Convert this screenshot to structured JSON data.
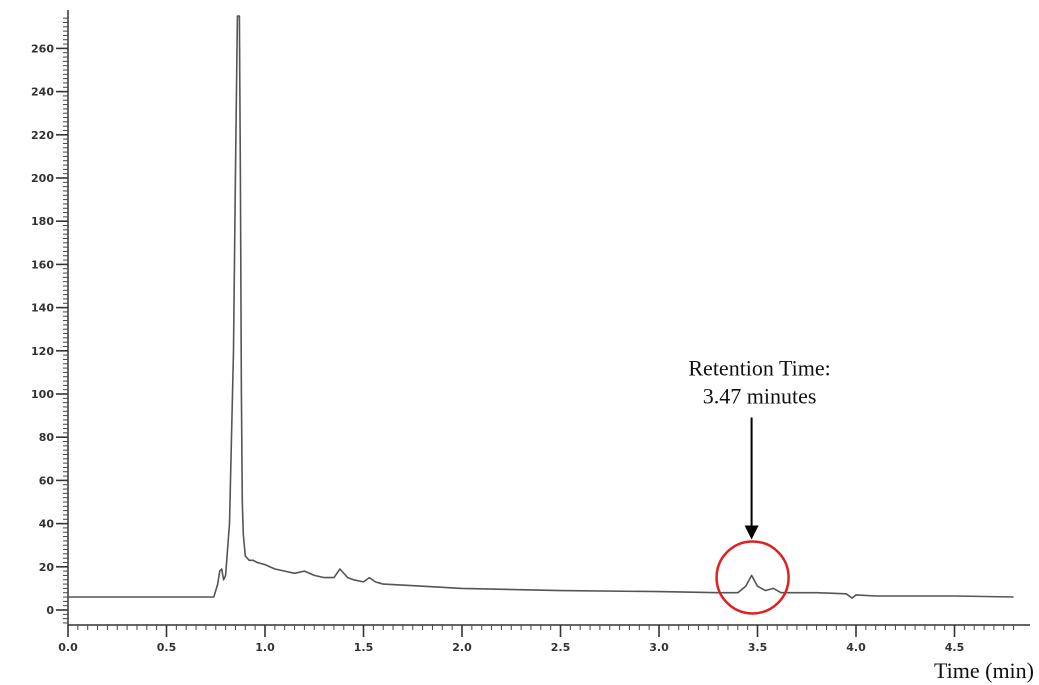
{
  "chart_data": {
    "type": "line",
    "title": "",
    "xlabel": "Time (min)",
    "ylabel": "",
    "xlim": [
      0.0,
      4.8
    ],
    "ylim": [
      -10,
      275
    ],
    "x_ticks": [
      0.0,
      0.5,
      1.0,
      1.5,
      2.0,
      2.5,
      3.0,
      3.5,
      4.0,
      4.5
    ],
    "x_tick_labels": [
      "0.0",
      "0.5",
      "1.0",
      "1.5",
      "2.0",
      "2.5",
      "3.0",
      "3.5",
      "4.0",
      "4.5"
    ],
    "y_ticks": [
      0,
      20,
      40,
      60,
      80,
      100,
      120,
      140,
      160,
      180,
      200,
      220,
      240,
      260
    ],
    "y_tick_labels": [
      "0",
      "20",
      "40",
      "60",
      "80",
      "100",
      "120",
      "140",
      "160",
      "180",
      "200",
      "220",
      "240",
      "260"
    ],
    "grid": false,
    "series": [
      {
        "color": "#555555",
        "x": [
          0.0,
          0.74,
          0.76,
          0.77,
          0.78,
          0.79,
          0.8,
          0.82,
          0.84,
          0.85,
          0.86,
          0.865,
          0.87,
          0.875,
          0.88,
          0.885,
          0.89,
          0.9,
          0.92,
          0.94,
          0.96,
          1.0,
          1.05,
          1.1,
          1.15,
          1.2,
          1.25,
          1.3,
          1.35,
          1.38,
          1.42,
          1.45,
          1.5,
          1.53,
          1.56,
          1.6,
          1.8,
          2.0,
          2.5,
          3.0,
          3.3,
          3.4,
          3.44,
          3.47,
          3.5,
          3.54,
          3.58,
          3.62,
          3.8,
          3.95,
          3.98,
          4.0,
          4.1,
          4.5,
          4.8
        ],
        "y": [
          6,
          6,
          12,
          18,
          19,
          14,
          16,
          40,
          120,
          200,
          275,
          275,
          275,
          200,
          100,
          50,
          35,
          25,
          23,
          23,
          22,
          21,
          19,
          18,
          17,
          18,
          16,
          15,
          15,
          19,
          15,
          14,
          13,
          15,
          13,
          12,
          11,
          10,
          9,
          8.5,
          8,
          8,
          11,
          16,
          11,
          9,
          10,
          8,
          8,
          7.5,
          5.5,
          7,
          6.5,
          6.5,
          6
        ]
      }
    ],
    "annotations": [
      {
        "text_line1": "Retention Time:",
        "text_line2": "3.47 minutes",
        "x": 3.47,
        "y": 16,
        "marker": "circle",
        "marker_color": "#e02020",
        "arrow": "down"
      }
    ]
  }
}
